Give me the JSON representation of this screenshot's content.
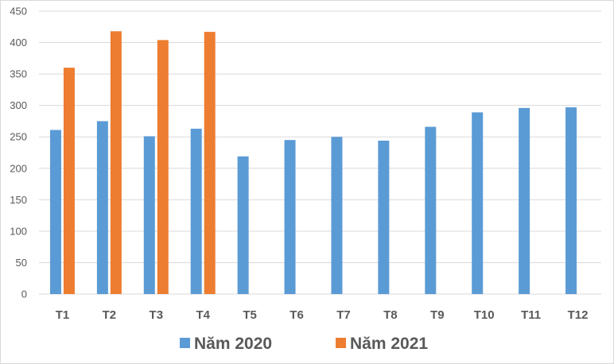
{
  "chart_data": {
    "type": "bar",
    "categories": [
      "T1",
      "T2",
      "T3",
      "T4",
      "T5",
      "T6",
      "T7",
      "T8",
      "T9",
      "T10",
      "T11",
      "T12"
    ],
    "series": [
      {
        "name": "Năm 2020",
        "color": "#5b9bd5",
        "values": [
          261,
          275,
          251,
          263,
          219,
          245,
          250,
          244,
          266,
          289,
          296,
          297
        ]
      },
      {
        "name": "Năm 2021",
        "color": "#ed7d31",
        "values": [
          360,
          418,
          404,
          417,
          null,
          null,
          null,
          null,
          null,
          null,
          null,
          null
        ]
      }
    ],
    "ylim": [
      0,
      450
    ],
    "yticks": [
      0,
      50,
      100,
      150,
      200,
      250,
      300,
      350,
      400,
      450
    ],
    "grid": true,
    "legend_position": "bottom",
    "gridline_color": "#d9d9d9"
  }
}
